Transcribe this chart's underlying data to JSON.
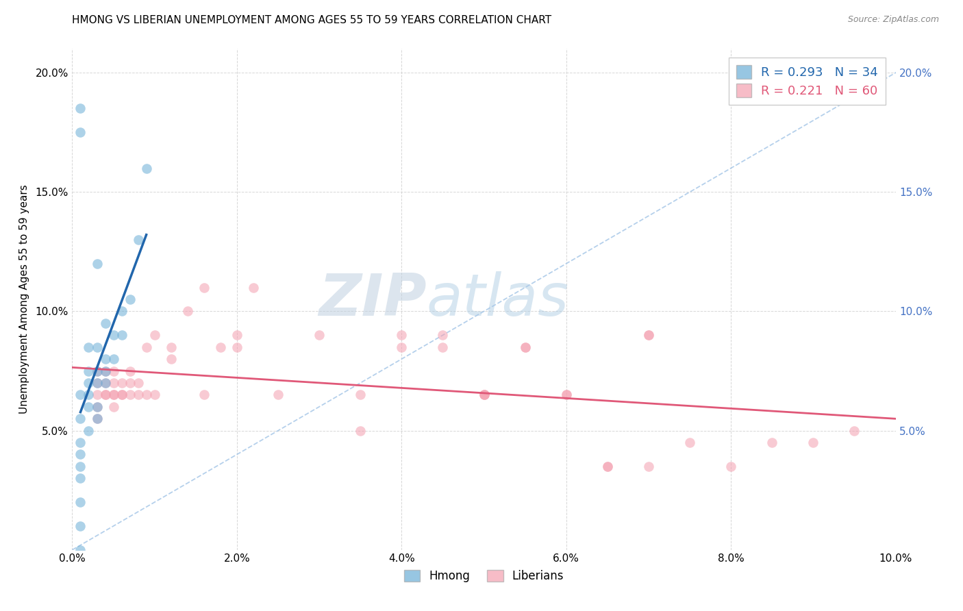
{
  "title": "HMONG VS LIBERIAN UNEMPLOYMENT AMONG AGES 55 TO 59 YEARS CORRELATION CHART",
  "source": "Source: ZipAtlas.com",
  "ylabel": "Unemployment Among Ages 55 to 59 years",
  "xlim": [
    0.0,
    0.1
  ],
  "ylim": [
    0.0,
    0.21
  ],
  "xticks": [
    0.0,
    0.02,
    0.04,
    0.06,
    0.08,
    0.1
  ],
  "yticks": [
    0.0,
    0.05,
    0.1,
    0.15,
    0.2
  ],
  "xticklabels": [
    "0.0%",
    "2.0%",
    "4.0%",
    "6.0%",
    "8.0%",
    "10.0%"
  ],
  "yticklabels": [
    "",
    "5.0%",
    "10.0%",
    "15.0%",
    "20.0%"
  ],
  "hmong_R": "0.293",
  "hmong_N": "34",
  "liberian_R": "0.221",
  "liberian_N": "60",
  "hmong_color": "#6baed6",
  "liberian_color": "#f4a0b0",
  "hmong_line_color": "#2166ac",
  "liberian_line_color": "#e05878",
  "diagonal_color": "#a8c8e8",
  "watermark_zip": "ZIP",
  "watermark_atlas": "atlas",
  "hmong_x": [
    0.001,
    0.001,
    0.001,
    0.001,
    0.001,
    0.001,
    0.001,
    0.001,
    0.002,
    0.002,
    0.002,
    0.002,
    0.002,
    0.002,
    0.003,
    0.003,
    0.003,
    0.003,
    0.003,
    0.004,
    0.004,
    0.004,
    0.005,
    0.005,
    0.006,
    0.006,
    0.007,
    0.008,
    0.009,
    0.001,
    0.001,
    0.001,
    0.003,
    0.004
  ],
  "hmong_y": [
    0.0,
    0.02,
    0.03,
    0.035,
    0.04,
    0.045,
    0.055,
    0.065,
    0.05,
    0.06,
    0.065,
    0.07,
    0.075,
    0.085,
    0.055,
    0.06,
    0.07,
    0.075,
    0.085,
    0.07,
    0.075,
    0.08,
    0.08,
    0.09,
    0.09,
    0.1,
    0.105,
    0.13,
    0.16,
    0.01,
    0.175,
    0.185,
    0.12,
    0.095
  ],
  "liberian_x": [
    0.003,
    0.003,
    0.003,
    0.003,
    0.003,
    0.004,
    0.004,
    0.004,
    0.004,
    0.005,
    0.005,
    0.005,
    0.005,
    0.005,
    0.006,
    0.006,
    0.006,
    0.007,
    0.007,
    0.007,
    0.008,
    0.008,
    0.009,
    0.009,
    0.01,
    0.01,
    0.012,
    0.012,
    0.014,
    0.016,
    0.016,
    0.018,
    0.02,
    0.02,
    0.022,
    0.025,
    0.03,
    0.035,
    0.035,
    0.04,
    0.04,
    0.045,
    0.045,
    0.05,
    0.05,
    0.055,
    0.06,
    0.065,
    0.07,
    0.07,
    0.075,
    0.08,
    0.085,
    0.09,
    0.095,
    0.05,
    0.055,
    0.06,
    0.065,
    0.07
  ],
  "liberian_y": [
    0.065,
    0.07,
    0.075,
    0.06,
    0.055,
    0.065,
    0.07,
    0.075,
    0.065,
    0.065,
    0.07,
    0.075,
    0.06,
    0.065,
    0.065,
    0.07,
    0.065,
    0.065,
    0.07,
    0.075,
    0.065,
    0.07,
    0.065,
    0.085,
    0.065,
    0.09,
    0.08,
    0.085,
    0.1,
    0.065,
    0.11,
    0.085,
    0.085,
    0.09,
    0.11,
    0.065,
    0.09,
    0.065,
    0.05,
    0.085,
    0.09,
    0.085,
    0.09,
    0.065,
    0.065,
    0.085,
    0.065,
    0.035,
    0.035,
    0.09,
    0.045,
    0.035,
    0.045,
    0.045,
    0.05,
    0.065,
    0.085,
    0.065,
    0.035,
    0.09
  ]
}
